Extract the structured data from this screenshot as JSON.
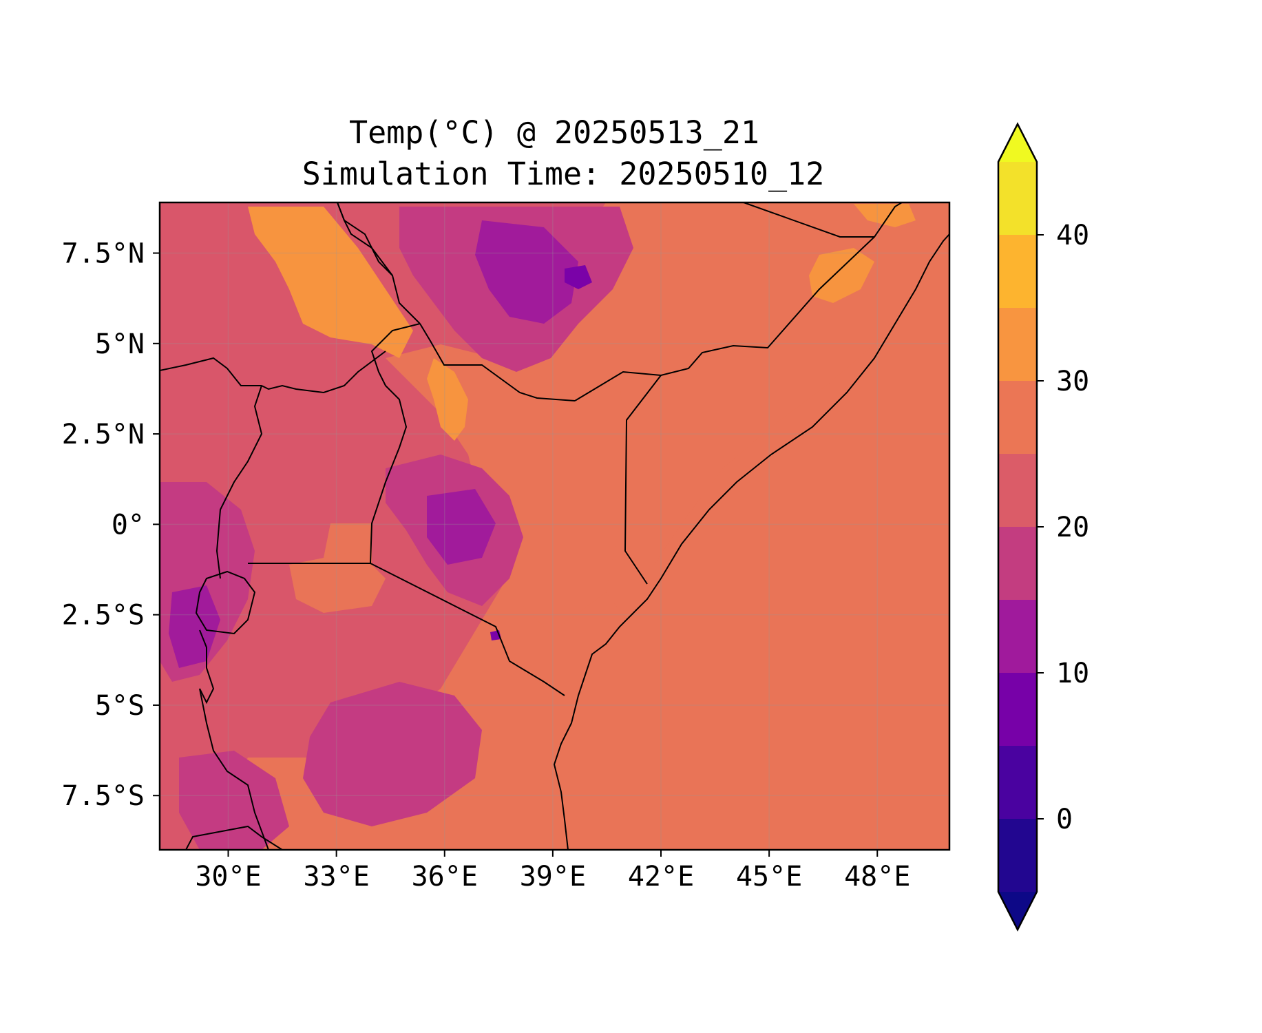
{
  "map": {
    "title_line1": "Temp(°C) @ 20250513_21",
    "title_line2": "Simulation Time: 20250510_12",
    "lon_ticks": [
      "30°E",
      "33°E",
      "36°E",
      "39°E",
      "42°E",
      "45°E",
      "48°E"
    ],
    "lat_ticks": [
      "7.5°N",
      "5°N",
      "2.5°N",
      "0°",
      "2.5°S",
      "5°S",
      "7.5°S"
    ],
    "lon_values": [
      30,
      33,
      36,
      39,
      42,
      45,
      48
    ],
    "lat_values": [
      7.5,
      5,
      2.5,
      0,
      -2.5,
      -5,
      -7.5
    ],
    "extent": {
      "lon_min": 28.1,
      "lon_max": 50.0,
      "lat_min": -9.0,
      "lat_max": 8.9
    }
  },
  "colorbar": {
    "levels": [
      -5,
      0,
      5,
      10,
      15,
      20,
      25,
      30,
      35,
      40,
      45
    ],
    "colors": [
      "#220690",
      "#4a02a0",
      "#7701a8",
      "#a01a9c",
      "#c33d80",
      "#db5c68",
      "#eb7655",
      "#f89540",
      "#fdb42f",
      "#f3e12a"
    ],
    "under_color": "#0d0887",
    "over_color": "#f0f921",
    "tick_labels": [
      "0",
      "10",
      "20",
      "30",
      "40"
    ],
    "tick_values": [
      0,
      10,
      20,
      30,
      40
    ]
  },
  "colors": {
    "sea": "#e97457",
    "land_base": "#d9566a",
    "warm": "#f7943f",
    "cool": "#c43b82",
    "cold": "#a11b9b",
    "coldest": "#7a02a8",
    "border": "#000000"
  }
}
